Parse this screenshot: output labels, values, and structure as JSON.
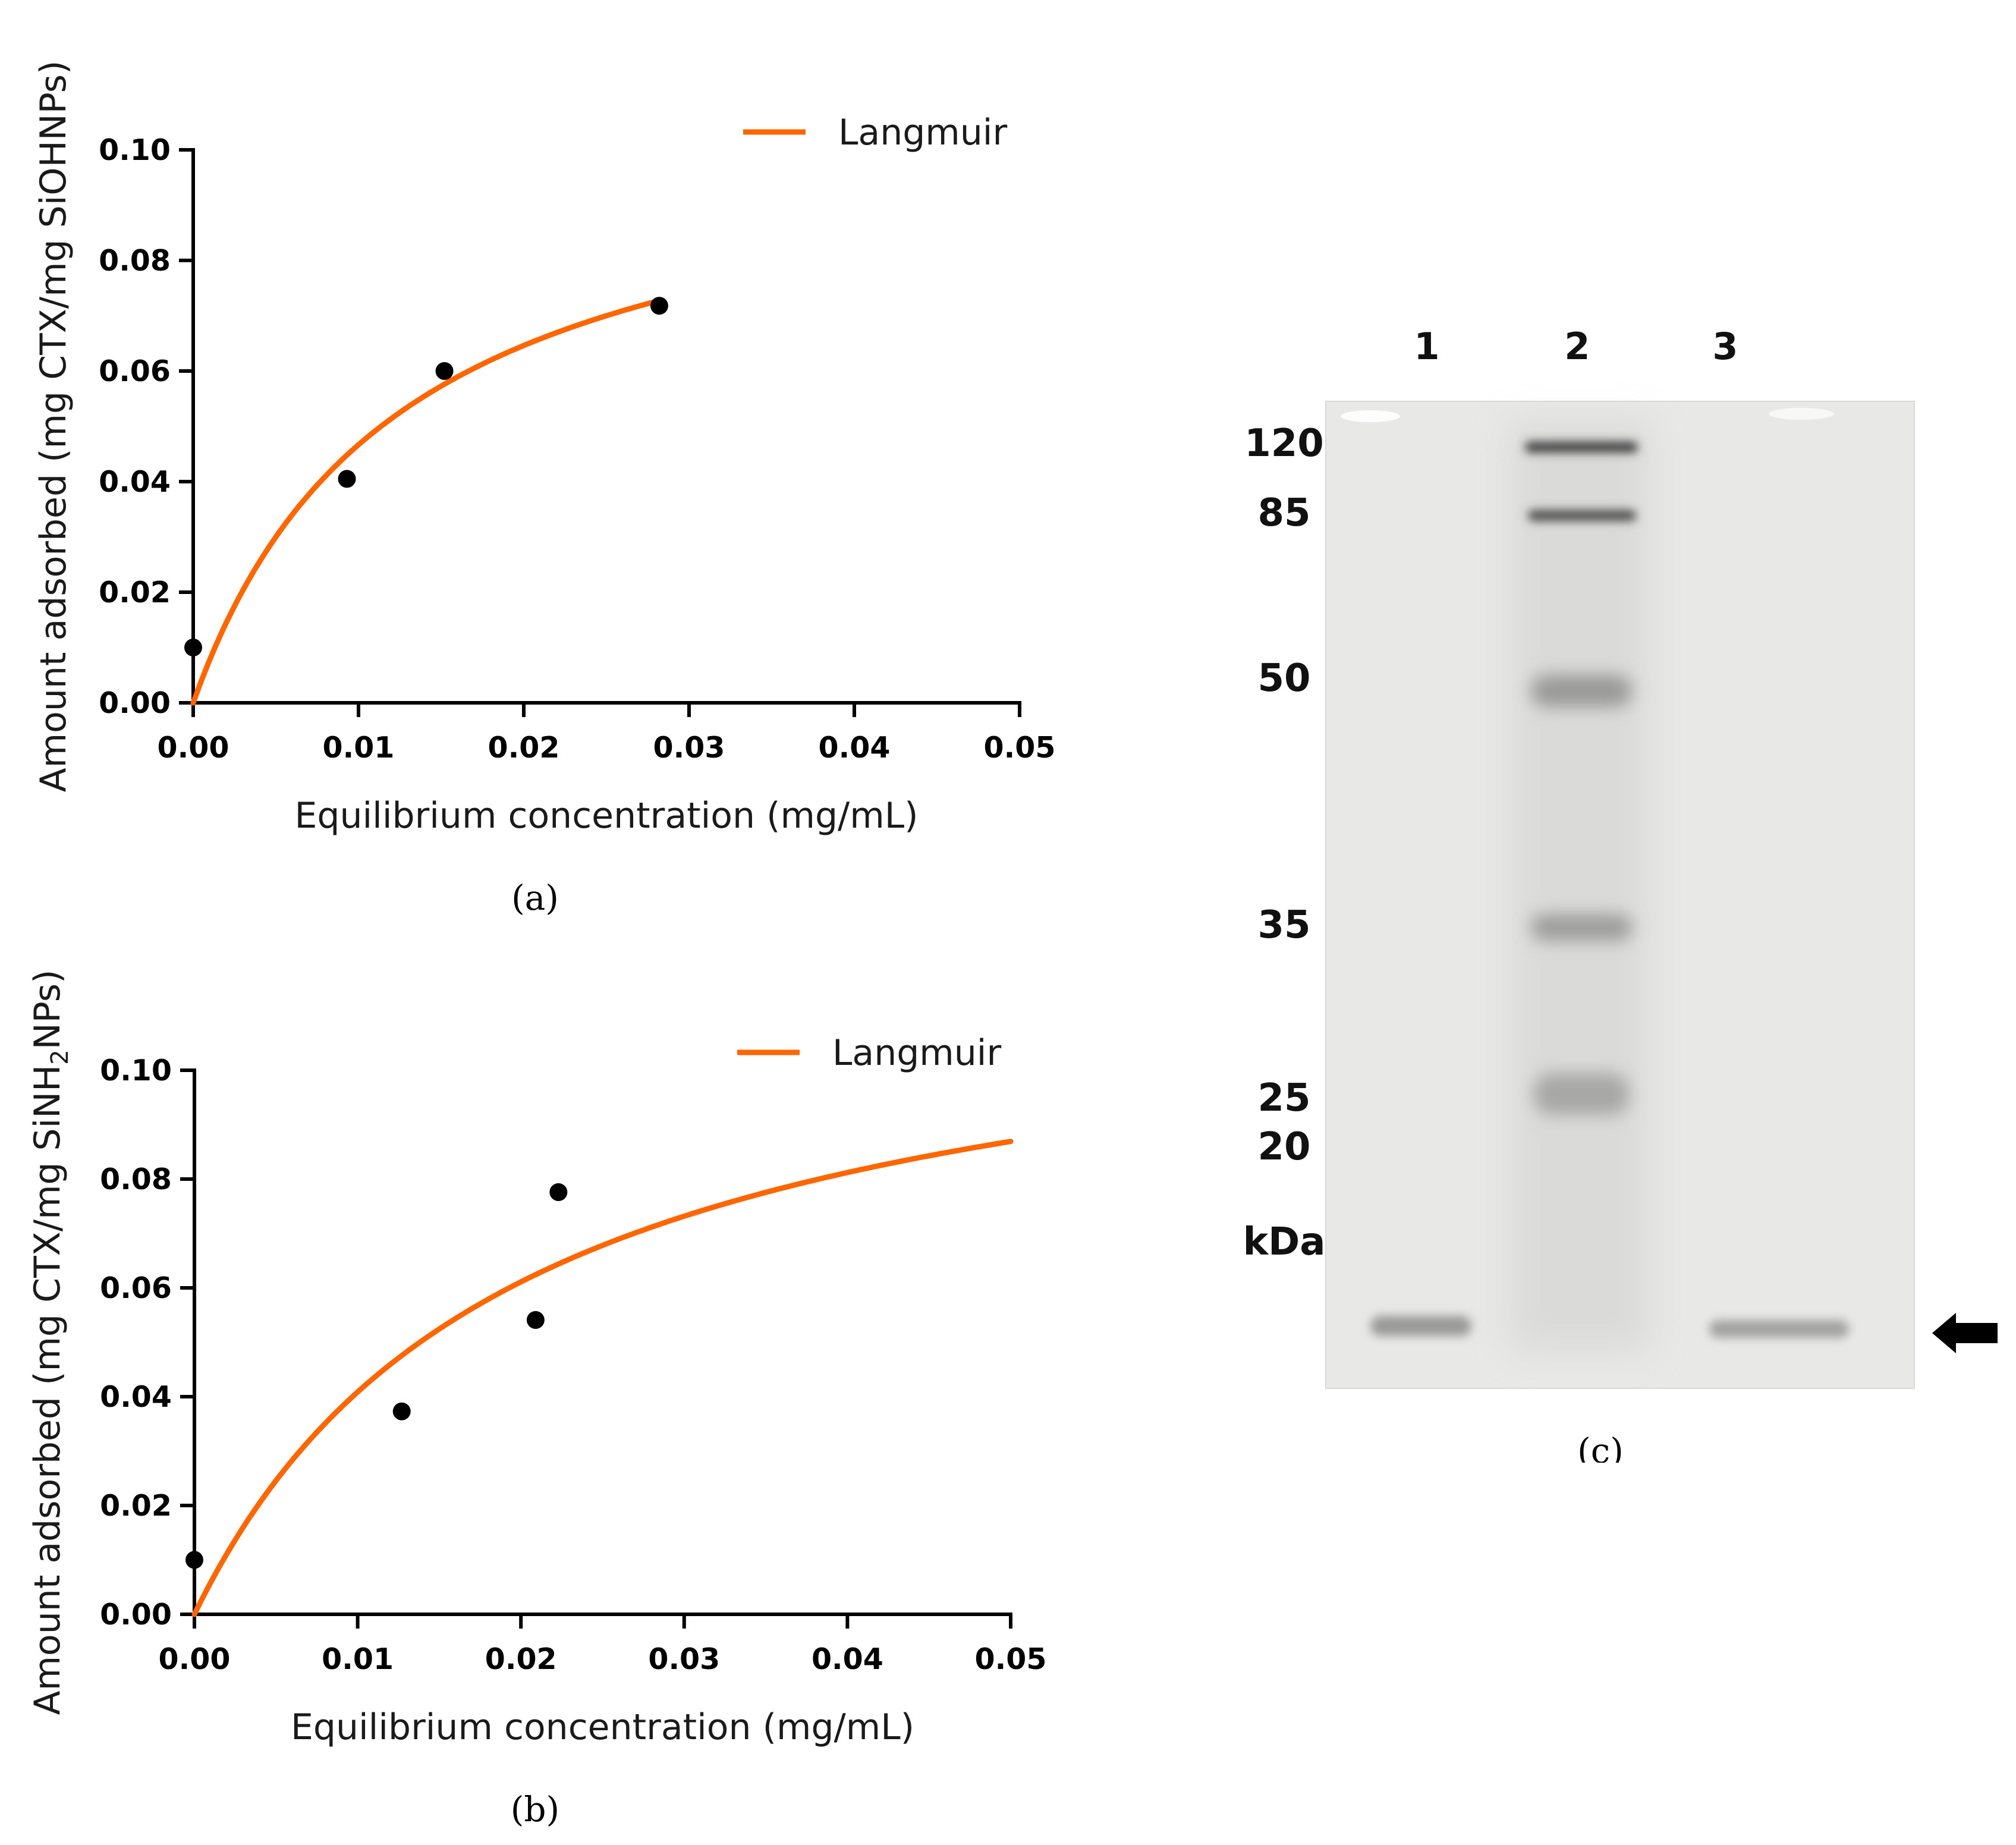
{
  "chart_data": [
    {
      "type": "scatter",
      "panel_label": "(a)",
      "xlabel": "Equilibrium concentration (mg/mL)",
      "ylabel": "Amount adsorbed (mg CTX/mg SiOHNPs)",
      "xlim": [
        0,
        0.05
      ],
      "ylim": [
        0,
        0.1
      ],
      "x_ticks": [
        "0.00",
        "0.01",
        "0.02",
        "0.03",
        "0.04",
        "0.05"
      ],
      "y_ticks": [
        "0.00",
        "0.02",
        "0.04",
        "0.06",
        "0.08",
        "0.10"
      ],
      "grid": false,
      "legend_position": "top-right",
      "series": [
        {
          "name": "Langmuir",
          "kind": "line",
          "color": "#ff6600",
          "model": "langmuir",
          "qmax": 0.105,
          "K": 80,
          "x_range": [
            0,
            0.0283
          ]
        },
        {
          "kind": "scatter",
          "color": "#000000",
          "points": [
            {
              "x": 0.0,
              "y": 0.01
            },
            {
              "x": 0.0093,
              "y": 0.0405
            },
            {
              "x": 0.0152,
              "y": 0.06
            },
            {
              "x": 0.0282,
              "y": 0.0718
            }
          ]
        }
      ]
    },
    {
      "type": "scatter",
      "panel_label": "(b)",
      "xlabel": "Equilibrium concentration (mg/mL)",
      "ylabel": "Amount adsorbed (mg CTX/mg SiNH2NPs)",
      "ylabel_parts": [
        "Amount adsorbed (mg CTX/mg SiNH",
        "2",
        "NPs)"
      ],
      "xlim": [
        0,
        0.05
      ],
      "ylim": [
        0,
        0.1
      ],
      "x_ticks": [
        "0.00",
        "0.01",
        "0.02",
        "0.03",
        "0.04",
        "0.05"
      ],
      "y_ticks": [
        "0.00",
        "0.02",
        "0.04",
        "0.06",
        "0.08",
        "0.10"
      ],
      "grid": false,
      "legend_position": "top-right",
      "series": [
        {
          "name": "Langmuir",
          "kind": "line",
          "color": "#ff6600",
          "model": "langmuir",
          "qmax": 0.121,
          "K": 51,
          "x_range": [
            0,
            0.05
          ]
        },
        {
          "kind": "scatter",
          "color": "#000000",
          "points": [
            {
              "x": 0.0,
              "y": 0.01
            },
            {
              "x": 0.0127,
              "y": 0.0373
            },
            {
              "x": 0.0209,
              "y": 0.0541
            },
            {
              "x": 0.0223,
              "y": 0.0776
            }
          ]
        }
      ]
    }
  ],
  "gel": {
    "panel_label": "(c)",
    "lanes": [
      "1",
      "2",
      "3"
    ],
    "markers": [
      "120",
      "85",
      "50",
      "35",
      "25",
      "20"
    ],
    "unit": "kDa",
    "arrow_icon": "arrow-left-icon"
  }
}
